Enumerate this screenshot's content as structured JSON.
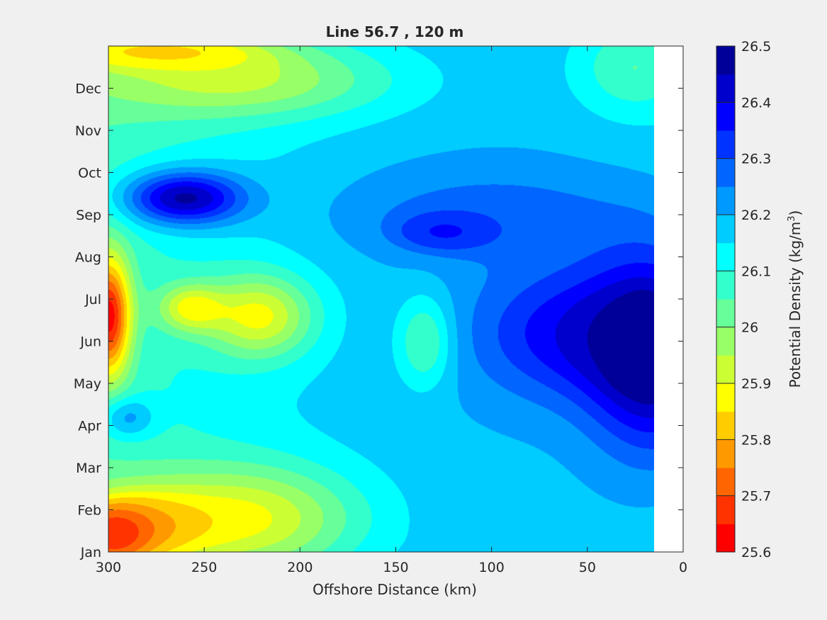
{
  "chart_data": {
    "type": "heatmap",
    "title": "Line 56.7 , 120 m",
    "xlabel": "Offshore Distance (km)",
    "ylabel": "",
    "x_reversed": true,
    "xlim": [
      300,
      0
    ],
    "x_ticks": [
      300,
      250,
      200,
      150,
      100,
      50,
      0
    ],
    "y_categories": [
      "Jan",
      "Feb",
      "Mar",
      "Apr",
      "May",
      "Jun",
      "Jul",
      "Aug",
      "Sep",
      "Oct",
      "Nov",
      "Dec"
    ],
    "data_coverage_x": [
      300,
      15
    ],
    "colorbar": {
      "label_prefix": "Potential Density (kg/m",
      "label_superscript": "3",
      "label_suffix": ")",
      "range": [
        25.6,
        26.5
      ],
      "tick_values": [
        25.6,
        25.7,
        25.8,
        25.9,
        26,
        26.1,
        26.2,
        26.3,
        26.4,
        26.5
      ],
      "tick_labels": [
        "25.6",
        "25.7",
        "25.8",
        "25.9",
        "26",
        "26.1",
        "26.2",
        "26.3",
        "26.4",
        "26.5"
      ],
      "levels": [
        25.6,
        25.65,
        25.7,
        25.75,
        25.8,
        25.85,
        25.9,
        25.95,
        26.0,
        26.05,
        26.1,
        26.15,
        26.2,
        26.25,
        26.3,
        26.35,
        26.4,
        26.45,
        26.5
      ],
      "colors": [
        "#ff0000",
        "#ff3300",
        "#ff6600",
        "#ff9900",
        "#ffcc00",
        "#ffff00",
        "#ccff33",
        "#99ff66",
        "#66ff99",
        "#33ffcc",
        "#00ffff",
        "#00ccff",
        "#0099ff",
        "#0066ff",
        "#0033ff",
        "#0000ff",
        "#0000cc",
        "#000099"
      ]
    },
    "features": [
      {
        "x": 300,
        "month": 5.6,
        "value": 25.62,
        "sx": 8,
        "sm": 1.0
      },
      {
        "x": 300,
        "month": 0.4,
        "value": 25.72,
        "sx": 14,
        "sm": 0.5
      },
      {
        "x": 232,
        "month": 0.8,
        "value": 25.88,
        "sx": 42,
        "sm": 0.9
      },
      {
        "x": 284,
        "month": 0.6,
        "value": 25.85,
        "sx": 22,
        "sm": 0.6
      },
      {
        "x": 222,
        "month": 5.6,
        "value": 25.88,
        "sx": 20,
        "sm": 0.7
      },
      {
        "x": 258,
        "month": 5.8,
        "value": 25.9,
        "sx": 12,
        "sm": 0.4
      },
      {
        "x": 240,
        "month": 11.2,
        "value": 25.93,
        "sx": 58,
        "sm": 0.65
      },
      {
        "x": 280,
        "month": 11.9,
        "value": 25.87,
        "sx": 40,
        "sm": 0.3
      },
      {
        "x": 135,
        "month": 5.0,
        "value": 26.03,
        "sx": 10,
        "sm": 0.75
      },
      {
        "x": 260,
        "month": 8.4,
        "value": 26.46,
        "sx": 22,
        "sm": 0.45
      },
      {
        "x": 125,
        "month": 7.6,
        "value": 26.33,
        "sx": 16,
        "sm": 0.3
      },
      {
        "x": 15,
        "month": 4.7,
        "value": 26.5,
        "sx": 24,
        "sm": 1.6
      },
      {
        "x": 60,
        "month": 5.2,
        "value": 26.38,
        "sx": 35,
        "sm": 1.1
      },
      {
        "x": 100,
        "month": 8.0,
        "value": 26.28,
        "sx": 55,
        "sm": 0.8
      },
      {
        "x": 290,
        "month": 3.2,
        "value": 26.22,
        "sx": 10,
        "sm": 0.35
      },
      {
        "x": 140,
        "month": 0.1,
        "value": 26.18,
        "sx": 20,
        "sm": 0.3
      },
      {
        "x": 25,
        "month": 11.5,
        "value": 26.05,
        "sx": 22,
        "sm": 0.8
      }
    ]
  }
}
